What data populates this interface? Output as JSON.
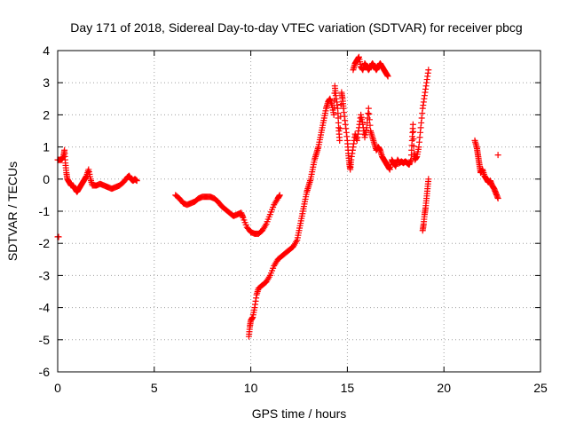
{
  "chart_data": {
    "type": "scatter",
    "title": "Day 171 of 2018, Sidereal Day-to-day VTEC variation (SDTVAR) for receiver pbcg",
    "xlabel": "GPS time / hours",
    "ylabel": "SDTVAR / TECUs",
    "xlim": [
      0,
      25
    ],
    "ylim": [
      -6,
      4
    ],
    "xticks": [
      0,
      5,
      10,
      15,
      20,
      25
    ],
    "yticks": [
      -6,
      -5,
      -4,
      -3,
      -2,
      -1,
      0,
      1,
      2,
      3,
      4
    ],
    "grid": true,
    "marker": "+",
    "color": "#ff0000",
    "series": [
      {
        "name": "pbcg",
        "segments": [
          [
            [
              0.0,
              -1.8
            ],
            [
              0.05,
              -1.8
            ]
          ],
          [
            [
              0.0,
              0.6
            ],
            [
              0.1,
              0.6
            ],
            [
              0.2,
              0.6
            ],
            [
              0.3,
              0.7
            ],
            [
              0.35,
              0.9
            ],
            [
              0.4,
              0.5
            ],
            [
              0.45,
              0.2
            ],
            [
              0.5,
              0.0
            ],
            [
              0.6,
              -0.1
            ],
            [
              0.7,
              -0.2
            ],
            [
              0.8,
              -0.2
            ],
            [
              0.9,
              -0.3
            ],
            [
              1.0,
              -0.4
            ],
            [
              1.1,
              -0.3
            ],
            [
              1.2,
              -0.2
            ],
            [
              1.3,
              -0.1
            ],
            [
              1.4,
              0.0
            ],
            [
              1.5,
              0.1
            ],
            [
              1.6,
              0.3
            ],
            [
              1.7,
              0.0
            ],
            [
              1.8,
              -0.2
            ],
            [
              2.0,
              -0.2
            ],
            [
              2.2,
              -0.15
            ],
            [
              2.4,
              -0.2
            ],
            [
              2.6,
              -0.25
            ],
            [
              2.8,
              -0.3
            ],
            [
              3.0,
              -0.25
            ],
            [
              3.2,
              -0.2
            ],
            [
              3.4,
              -0.1
            ],
            [
              3.6,
              0.05
            ],
            [
              3.7,
              0.1
            ],
            [
              3.8,
              0.0
            ],
            [
              3.9,
              -0.05
            ],
            [
              4.0,
              0.0
            ],
            [
              4.1,
              -0.05
            ]
          ],
          [
            [
              6.1,
              -0.5
            ],
            [
              6.3,
              -0.6
            ],
            [
              6.5,
              -0.75
            ],
            [
              6.7,
              -0.8
            ],
            [
              6.9,
              -0.75
            ],
            [
              7.1,
              -0.7
            ],
            [
              7.3,
              -0.6
            ],
            [
              7.5,
              -0.55
            ],
            [
              7.7,
              -0.55
            ],
            [
              7.9,
              -0.55
            ],
            [
              8.1,
              -0.6
            ],
            [
              8.3,
              -0.7
            ],
            [
              8.5,
              -0.85
            ],
            [
              8.7,
              -0.95
            ],
            [
              8.9,
              -1.05
            ],
            [
              9.1,
              -1.15
            ],
            [
              9.3,
              -1.1
            ],
            [
              9.5,
              -1.05
            ],
            [
              9.6,
              -1.2
            ],
            [
              9.8,
              -1.5
            ],
            [
              10.0,
              -1.65
            ],
            [
              10.2,
              -1.7
            ],
            [
              10.4,
              -1.7
            ],
            [
              10.6,
              -1.6
            ],
            [
              10.8,
              -1.4
            ],
            [
              11.0,
              -1.1
            ],
            [
              11.2,
              -0.8
            ],
            [
              11.4,
              -0.6
            ],
            [
              11.5,
              -0.5
            ]
          ],
          [
            [
              9.9,
              -4.9
            ],
            [
              9.95,
              -4.6
            ],
            [
              10.0,
              -4.4
            ],
            [
              10.1,
              -4.3
            ],
            [
              10.2,
              -4.0
            ],
            [
              10.3,
              -3.6
            ],
            [
              10.4,
              -3.4
            ],
            [
              10.6,
              -3.3
            ],
            [
              10.8,
              -3.2
            ],
            [
              11.0,
              -3.0
            ],
            [
              11.2,
              -2.7
            ],
            [
              11.4,
              -2.5
            ],
            [
              11.6,
              -2.4
            ],
            [
              11.8,
              -2.3
            ],
            [
              12.0,
              -2.2
            ],
            [
              12.2,
              -2.1
            ],
            [
              12.4,
              -1.9
            ],
            [
              12.5,
              -1.6
            ],
            [
              12.6,
              -1.3
            ],
            [
              12.7,
              -1.0
            ],
            [
              12.8,
              -0.7
            ],
            [
              12.9,
              -0.4
            ],
            [
              13.0,
              -0.2
            ],
            [
              13.1,
              0.0
            ],
            [
              13.2,
              0.3
            ],
            [
              13.3,
              0.6
            ],
            [
              13.4,
              0.8
            ],
            [
              13.5,
              1.0
            ],
            [
              13.6,
              1.3
            ],
            [
              13.7,
              1.6
            ],
            [
              13.8,
              1.9
            ],
            [
              13.9,
              2.2
            ],
            [
              14.0,
              2.4
            ],
            [
              14.1,
              2.5
            ],
            [
              14.2,
              2.3
            ],
            [
              14.3,
              2.0
            ],
            [
              14.35,
              2.9
            ],
            [
              14.4,
              2.6
            ],
            [
              14.5,
              2.2
            ],
            [
              14.55,
              1.6
            ],
            [
              14.6,
              1.2
            ],
            [
              14.7,
              2.7
            ],
            [
              14.75,
              2.5
            ],
            [
              14.8,
              2.2
            ],
            [
              14.9,
              1.7
            ],
            [
              15.0,
              1.2
            ],
            [
              15.05,
              0.8
            ],
            [
              15.1,
              0.5
            ],
            [
              15.15,
              0.3
            ],
            [
              15.2,
              0.6
            ],
            [
              15.3,
              1.0
            ],
            [
              15.4,
              1.4
            ],
            [
              15.5,
              1.2
            ],
            [
              15.6,
              1.6
            ],
            [
              15.7,
              2.0
            ],
            [
              15.8,
              1.7
            ],
            [
              15.9,
              1.3
            ],
            [
              16.0,
              1.6
            ],
            [
              16.1,
              2.2
            ],
            [
              16.2,
              1.5
            ],
            [
              16.3,
              1.3
            ],
            [
              16.4,
              1.1
            ],
            [
              16.5,
              0.9
            ],
            [
              16.6,
              1.0
            ],
            [
              16.7,
              0.9
            ],
            [
              16.8,
              0.7
            ],
            [
              16.9,
              0.6
            ],
            [
              17.0,
              0.5
            ],
            [
              17.1,
              0.4
            ],
            [
              17.2,
              0.3
            ],
            [
              17.3,
              0.6
            ],
            [
              17.4,
              0.5
            ],
            [
              17.5,
              0.4
            ],
            [
              17.6,
              0.6
            ],
            [
              17.7,
              0.5
            ],
            [
              17.8,
              0.55
            ],
            [
              17.9,
              0.5
            ],
            [
              18.0,
              0.55
            ],
            [
              18.1,
              0.5
            ],
            [
              18.2,
              0.45
            ],
            [
              18.3,
              0.6
            ],
            [
              18.35,
              1.2
            ],
            [
              18.4,
              1.7
            ],
            [
              18.45,
              0.8
            ],
            [
              18.5,
              0.6
            ],
            [
              18.6,
              0.7
            ],
            [
              18.7,
              1.0
            ],
            [
              18.8,
              1.6
            ],
            [
              18.9,
              2.2
            ],
            [
              19.0,
              2.6
            ],
            [
              19.1,
              3.0
            ],
            [
              19.2,
              3.4
            ]
          ],
          [
            [
              15.3,
              3.4
            ],
            [
              15.4,
              3.6
            ],
            [
              15.5,
              3.7
            ],
            [
              15.6,
              3.8
            ],
            [
              15.7,
              3.5
            ],
            [
              15.8,
              3.4
            ],
            [
              15.9,
              3.6
            ],
            [
              16.0,
              3.5
            ],
            [
              16.1,
              3.4
            ],
            [
              16.2,
              3.5
            ],
            [
              16.3,
              3.6
            ],
            [
              16.4,
              3.5
            ],
            [
              16.5,
              3.4
            ],
            [
              16.6,
              3.5
            ],
            [
              16.7,
              3.6
            ],
            [
              16.8,
              3.5
            ],
            [
              16.9,
              3.4
            ],
            [
              17.0,
              3.3
            ],
            [
              17.1,
              3.2
            ]
          ],
          [
            [
              18.9,
              -1.6
            ],
            [
              18.95,
              -1.4
            ],
            [
              19.0,
              -1.1
            ],
            [
              19.05,
              -0.9
            ],
            [
              19.1,
              -0.6
            ],
            [
              19.15,
              -0.3
            ],
            [
              19.2,
              0.0
            ]
          ],
          [
            [
              21.6,
              1.2
            ],
            [
              21.7,
              1.0
            ],
            [
              21.75,
              0.8
            ],
            [
              21.8,
              0.6
            ],
            [
              21.85,
              0.4
            ],
            [
              21.9,
              0.2
            ],
            [
              22.0,
              0.3
            ],
            [
              22.1,
              0.1
            ],
            [
              22.2,
              0.0
            ],
            [
              22.3,
              -0.1
            ],
            [
              22.4,
              -0.05
            ],
            [
              22.5,
              -0.2
            ],
            [
              22.6,
              -0.3
            ],
            [
              22.7,
              -0.45
            ],
            [
              22.8,
              -0.6
            ]
          ],
          [
            [
              22.8,
              0.75
            ]
          ]
        ]
      }
    ]
  }
}
